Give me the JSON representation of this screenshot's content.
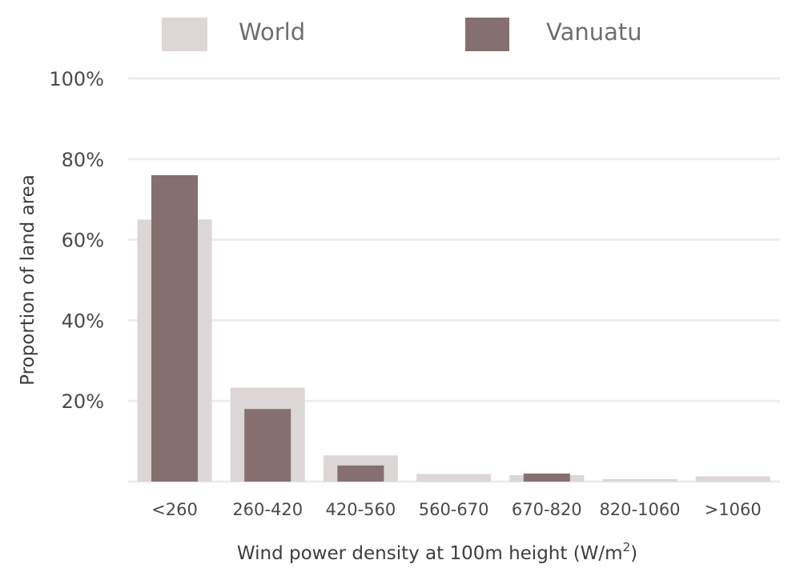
{
  "chart_data": {
    "type": "bar",
    "categories": [
      "<260",
      "260-420",
      "420-560",
      "560-670",
      "670-820",
      "820-1060",
      ">1060"
    ],
    "series": [
      {
        "name": "World",
        "color": "#dcd6d6",
        "values": [
          65,
          23.3,
          6.5,
          1.9,
          1.6,
          0.6,
          1.3
        ]
      },
      {
        "name": "Vanuatu",
        "color": "#85706f",
        "values": [
          76,
          18,
          4,
          0,
          2,
          0,
          0
        ]
      }
    ],
    "ylim": [
      0,
      100
    ],
    "yticks": [
      20,
      40,
      60,
      80,
      100
    ],
    "ytick_labels": [
      "20%",
      "40%",
      "60%",
      "80%",
      "100%"
    ],
    "xlabel": "Wind power density at 100m height (W/m",
    "xlabel_sup": "2",
    "xlabel_close": ")",
    "ylabel": "Proportion of land area",
    "grid": true,
    "legend_position": "top"
  }
}
